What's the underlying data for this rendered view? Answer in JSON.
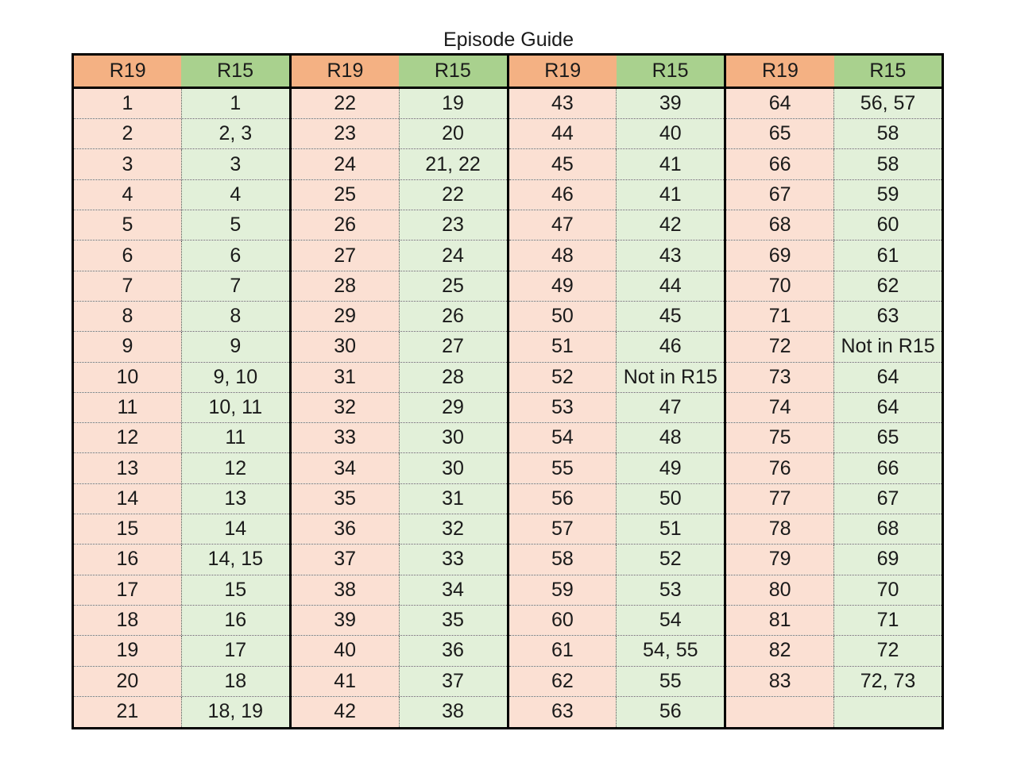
{
  "title": "Episode Guide",
  "colors": {
    "header_r19": "#f4b183",
    "header_r15": "#a9d18e",
    "cell_r19": "#fbe0d3",
    "cell_r15": "#e2f0d9"
  },
  "headers": {
    "r19": "R19",
    "r15": "R15"
  },
  "groups": [
    {
      "rows": [
        {
          "r19": "1",
          "r15": "1"
        },
        {
          "r19": "2",
          "r15": "2, 3"
        },
        {
          "r19": "3",
          "r15": "3"
        },
        {
          "r19": "4",
          "r15": "4"
        },
        {
          "r19": "5",
          "r15": "5"
        },
        {
          "r19": "6",
          "r15": "6"
        },
        {
          "r19": "7",
          "r15": "7"
        },
        {
          "r19": "8",
          "r15": "8"
        },
        {
          "r19": "9",
          "r15": "9"
        },
        {
          "r19": "10",
          "r15": "9, 10"
        },
        {
          "r19": "11",
          "r15": "10, 11"
        },
        {
          "r19": "12",
          "r15": "11"
        },
        {
          "r19": "13",
          "r15": "12"
        },
        {
          "r19": "14",
          "r15": "13"
        },
        {
          "r19": "15",
          "r15": "14"
        },
        {
          "r19": "16",
          "r15": "14, 15"
        },
        {
          "r19": "17",
          "r15": "15"
        },
        {
          "r19": "18",
          "r15": "16"
        },
        {
          "r19": "19",
          "r15": "17"
        },
        {
          "r19": "20",
          "r15": "18"
        },
        {
          "r19": "21",
          "r15": "18, 19"
        }
      ]
    },
    {
      "rows": [
        {
          "r19": "22",
          "r15": "19"
        },
        {
          "r19": "23",
          "r15": "20"
        },
        {
          "r19": "24",
          "r15": "21, 22"
        },
        {
          "r19": "25",
          "r15": "22"
        },
        {
          "r19": "26",
          "r15": "23"
        },
        {
          "r19": "27",
          "r15": "24"
        },
        {
          "r19": "28",
          "r15": "25"
        },
        {
          "r19": "29",
          "r15": "26"
        },
        {
          "r19": "30",
          "r15": "27"
        },
        {
          "r19": "31",
          "r15": "28"
        },
        {
          "r19": "32",
          "r15": "29"
        },
        {
          "r19": "33",
          "r15": "30"
        },
        {
          "r19": "34",
          "r15": "30"
        },
        {
          "r19": "35",
          "r15": "31"
        },
        {
          "r19": "36",
          "r15": "32"
        },
        {
          "r19": "37",
          "r15": "33"
        },
        {
          "r19": "38",
          "r15": "34"
        },
        {
          "r19": "39",
          "r15": "35"
        },
        {
          "r19": "40",
          "r15": "36"
        },
        {
          "r19": "41",
          "r15": "37"
        },
        {
          "r19": "42",
          "r15": "38"
        }
      ]
    },
    {
      "rows": [
        {
          "r19": "43",
          "r15": "39"
        },
        {
          "r19": "44",
          "r15": "40"
        },
        {
          "r19": "45",
          "r15": "41"
        },
        {
          "r19": "46",
          "r15": "41"
        },
        {
          "r19": "47",
          "r15": "42"
        },
        {
          "r19": "48",
          "r15": "43"
        },
        {
          "r19": "49",
          "r15": "44"
        },
        {
          "r19": "50",
          "r15": "45"
        },
        {
          "r19": "51",
          "r15": "46"
        },
        {
          "r19": "52",
          "r15": "Not in R15"
        },
        {
          "r19": "53",
          "r15": "47"
        },
        {
          "r19": "54",
          "r15": "48"
        },
        {
          "r19": "55",
          "r15": "49"
        },
        {
          "r19": "56",
          "r15": "50"
        },
        {
          "r19": "57",
          "r15": "51"
        },
        {
          "r19": "58",
          "r15": "52"
        },
        {
          "r19": "59",
          "r15": "53"
        },
        {
          "r19": "60",
          "r15": "54"
        },
        {
          "r19": "61",
          "r15": "54, 55"
        },
        {
          "r19": "62",
          "r15": "55"
        },
        {
          "r19": "63",
          "r15": "56"
        }
      ]
    },
    {
      "rows": [
        {
          "r19": "64",
          "r15": "56, 57"
        },
        {
          "r19": "65",
          "r15": "58"
        },
        {
          "r19": "66",
          "r15": "58"
        },
        {
          "r19": "67",
          "r15": "59"
        },
        {
          "r19": "68",
          "r15": "60"
        },
        {
          "r19": "69",
          "r15": "61"
        },
        {
          "r19": "70",
          "r15": "62"
        },
        {
          "r19": "71",
          "r15": "63"
        },
        {
          "r19": "72",
          "r15": "Not in R15"
        },
        {
          "r19": "73",
          "r15": "64"
        },
        {
          "r19": "74",
          "r15": "64"
        },
        {
          "r19": "75",
          "r15": "65"
        },
        {
          "r19": "76",
          "r15": "66"
        },
        {
          "r19": "77",
          "r15": "67"
        },
        {
          "r19": "78",
          "r15": "68"
        },
        {
          "r19": "79",
          "r15": "69"
        },
        {
          "r19": "80",
          "r15": "70"
        },
        {
          "r19": "81",
          "r15": "71"
        },
        {
          "r19": "82",
          "r15": "72"
        },
        {
          "r19": "83",
          "r15": "72, 73"
        },
        {
          "r19": "",
          "r15": ""
        }
      ]
    }
  ]
}
